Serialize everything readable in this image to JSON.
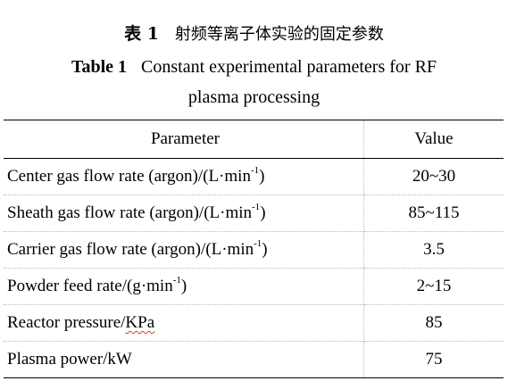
{
  "caption": {
    "cn_label": "表 1",
    "cn_text": "射频等离子体实验的固定参数",
    "en_label": "Table 1",
    "en_text_line1": "Constant experimental parameters for RF",
    "en_text_line2": "plasma processing"
  },
  "table": {
    "headers": {
      "parameter": "Parameter",
      "value": "Value"
    },
    "rows": [
      {
        "label": "Center gas flow rate (argon)/(L·min",
        "sup": "-1",
        "suffix": ")",
        "value": "20~30"
      },
      {
        "label": "Sheath gas flow rate (argon)/(L·min",
        "sup": "-1",
        "suffix": ")",
        "value": "85~115"
      },
      {
        "label": "Carrier gas flow rate (argon)/(L·min",
        "sup": "-1",
        "suffix": ")",
        "value": "3.5"
      },
      {
        "label": "Powder feed rate/(g·min",
        "sup": "-1",
        "suffix": ")",
        "value": "2~15"
      },
      {
        "label": "Reactor pressure/",
        "flagged": "KPa",
        "value": "85"
      },
      {
        "label": "Plasma power/kW",
        "value": "75"
      }
    ]
  },
  "colors": {
    "text": "#000000",
    "rule": "#000000",
    "dotted_rule": "#b8b8b8",
    "spellcheck": "#d23a3a"
  }
}
